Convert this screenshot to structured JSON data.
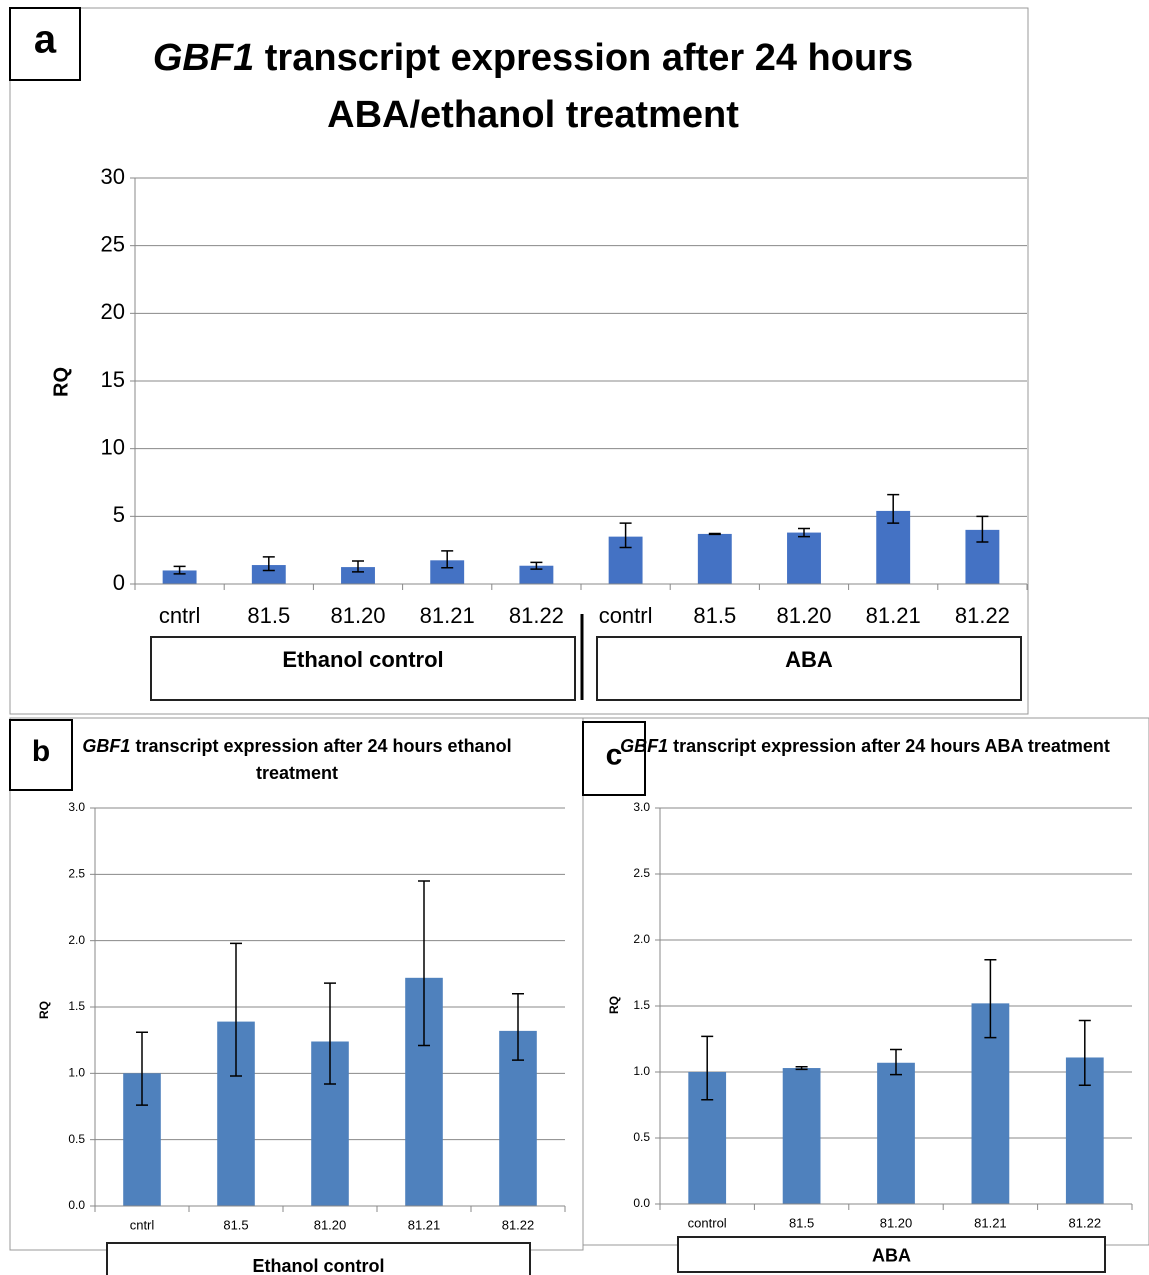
{
  "chart_data": [
    {
      "type": "bar",
      "panel": "a",
      "title_gene": "GBF1",
      "title": "transcript expression after 24 hours ABA/ethanol treatment",
      "ylabel": "RQ",
      "categories": [
        "cntrl",
        "81.5",
        "81.20",
        "81.21",
        "81.22",
        "contrl",
        "81.5",
        "81.20",
        "81.21",
        "81.22"
      ],
      "values": [
        1.0,
        1.4,
        1.25,
        1.75,
        1.35,
        3.5,
        3.7,
        3.8,
        5.4,
        4.0
      ],
      "errors_plus": [
        0.3,
        0.6,
        0.45,
        0.7,
        0.25,
        1.0,
        0.03,
        0.3,
        1.2,
        1.0
      ],
      "errors_minus": [
        0.25,
        0.4,
        0.35,
        0.55,
        0.25,
        0.8,
        0.03,
        0.3,
        0.9,
        0.9
      ],
      "groups": [
        "Ethanol control",
        "ABA"
      ],
      "color": "#4472c4",
      "ylim": [
        0,
        30
      ],
      "yticks": [
        0,
        5,
        10,
        15,
        20,
        25,
        30
      ],
      "grid": true
    },
    {
      "type": "bar",
      "panel": "b",
      "title_gene": "GBF1",
      "title": "transcript expression after 24 hours ethanol treatment",
      "ylabel": "RQ",
      "categories": [
        "cntrl",
        "81.5",
        "81.20",
        "81.21",
        "81.22"
      ],
      "values": [
        1.0,
        1.39,
        1.24,
        1.72,
        1.32
      ],
      "errors_plus": [
        0.31,
        0.59,
        0.44,
        0.73,
        0.28
      ],
      "errors_minus": [
        0.24,
        0.41,
        0.32,
        0.51,
        0.22
      ],
      "groups": [
        "Ethanol control"
      ],
      "color": "#4f81bd",
      "ylim": [
        0,
        3
      ],
      "yticks": [
        {
          "value": 0,
          "label": "0.0"
        },
        0.5,
        {
          "value": 1,
          "label": "1.0"
        },
        1.5,
        {
          "value": 2,
          "label": "2.0"
        },
        2.5,
        {
          "value": 3,
          "label": "3.0"
        }
      ],
      "grid": true
    },
    {
      "type": "bar",
      "panel": "c",
      "title_gene": "GBF1",
      "title": "transcript expression after 24 hours ABA treatment",
      "ylabel": "RQ",
      "categories": [
        "control",
        "81.5",
        "81.20",
        "81.21",
        "81.22"
      ],
      "values": [
        1.0,
        1.03,
        1.07,
        1.52,
        1.11
      ],
      "errors_plus": [
        0.27,
        0.01,
        0.1,
        0.33,
        0.28
      ],
      "errors_minus": [
        0.21,
        0.01,
        0.09,
        0.26,
        0.21
      ],
      "groups": [
        "ABA"
      ],
      "color": "#4f81bd",
      "ylim": [
        0,
        3
      ],
      "yticks": [
        {
          "value": 0,
          "label": "0.0"
        },
        0.5,
        {
          "value": 1,
          "label": "1.0"
        },
        1.5,
        {
          "value": 2,
          "label": "2.0"
        },
        2.5,
        {
          "value": 3,
          "label": "3.0"
        }
      ],
      "grid": true
    }
  ]
}
